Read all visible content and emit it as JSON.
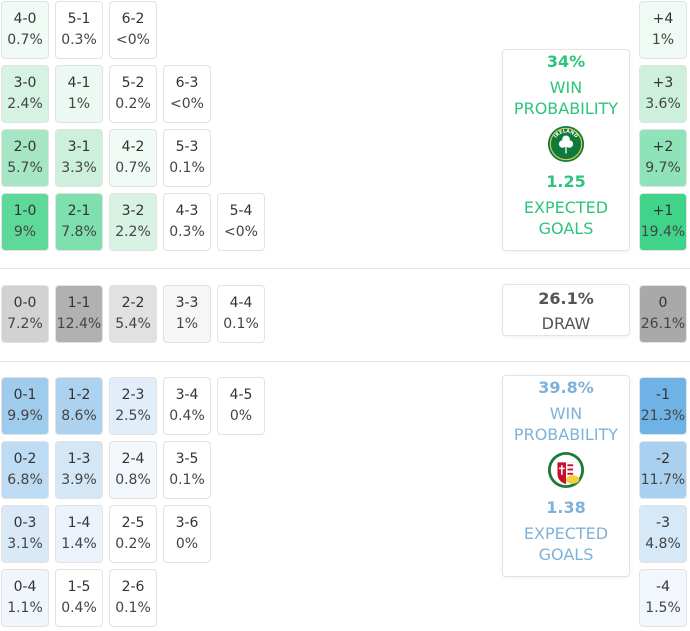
{
  "home_scores": [
    {
      "score": "4-0",
      "pct": "0.7%",
      "bg": "#f0fbf5",
      "col": 0,
      "row": 0
    },
    {
      "score": "5-1",
      "pct": "0.3%",
      "bg": "#ffffff",
      "col": 1,
      "row": 0
    },
    {
      "score": "6-2",
      "pct": "<0%",
      "bg": "#ffffff",
      "col": 2,
      "row": 0
    },
    {
      "score": "3-0",
      "pct": "2.4%",
      "bg": "#d5f2e2",
      "col": 0,
      "row": 1
    },
    {
      "score": "4-1",
      "pct": "1%",
      "bg": "#ecf9f2",
      "col": 1,
      "row": 1
    },
    {
      "score": "5-2",
      "pct": "0.2%",
      "bg": "#ffffff",
      "col": 2,
      "row": 1
    },
    {
      "score": "6-3",
      "pct": "<0%",
      "bg": "#ffffff",
      "col": 3,
      "row": 1
    },
    {
      "score": "2-0",
      "pct": "5.7%",
      "bg": "#a6e6c4",
      "col": 0,
      "row": 2
    },
    {
      "score": "3-1",
      "pct": "3.3%",
      "bg": "#ccf0dc",
      "col": 1,
      "row": 2
    },
    {
      "score": "4-2",
      "pct": "0.7%",
      "bg": "#f0fbf5",
      "col": 2,
      "row": 2
    },
    {
      "score": "5-3",
      "pct": "0.1%",
      "bg": "#ffffff",
      "col": 3,
      "row": 2
    },
    {
      "score": "1-0",
      "pct": "9%",
      "bg": "#5fd99a",
      "col": 0,
      "row": 3
    },
    {
      "score": "2-1",
      "pct": "7.8%",
      "bg": "#7fdfae",
      "col": 1,
      "row": 3
    },
    {
      "score": "3-2",
      "pct": "2.2%",
      "bg": "#d8f3e4",
      "col": 2,
      "row": 3
    },
    {
      "score": "4-3",
      "pct": "0.3%",
      "bg": "#ffffff",
      "col": 3,
      "row": 3
    },
    {
      "score": "5-4",
      "pct": "<0%",
      "bg": "#ffffff",
      "col": 4,
      "row": 3
    }
  ],
  "draw_scores": [
    {
      "score": "0-0",
      "pct": "7.2%",
      "bg": "#d2d2d2",
      "col": 0
    },
    {
      "score": "1-1",
      "pct": "12.4%",
      "bg": "#b1b1b1",
      "col": 1
    },
    {
      "score": "2-2",
      "pct": "5.4%",
      "bg": "#e1e1e1",
      "col": 2
    },
    {
      "score": "3-3",
      "pct": "1%",
      "bg": "#f6f6f6",
      "col": 3
    },
    {
      "score": "4-4",
      "pct": "0.1%",
      "bg": "#ffffff",
      "col": 4
    }
  ],
  "away_scores": [
    {
      "score": "0-1",
      "pct": "9.9%",
      "bg": "#9fcbec",
      "col": 0,
      "row": 0
    },
    {
      "score": "1-2",
      "pct": "8.6%",
      "bg": "#add2ef",
      "col": 1,
      "row": 0
    },
    {
      "score": "2-3",
      "pct": "2.5%",
      "bg": "#e1eefa",
      "col": 2,
      "row": 0
    },
    {
      "score": "3-4",
      "pct": "0.4%",
      "bg": "#ffffff",
      "col": 3,
      "row": 0
    },
    {
      "score": "4-5",
      "pct": "0%",
      "bg": "#ffffff",
      "col": 4,
      "row": 0
    },
    {
      "score": "0-2",
      "pct": "6.8%",
      "bg": "#bddbf2",
      "col": 0,
      "row": 1
    },
    {
      "score": "1-3",
      "pct": "3.9%",
      "bg": "#d3e7f7",
      "col": 1,
      "row": 1
    },
    {
      "score": "2-4",
      "pct": "0.8%",
      "bg": "#f3f8fd",
      "col": 2,
      "row": 1
    },
    {
      "score": "3-5",
      "pct": "0.1%",
      "bg": "#ffffff",
      "col": 3,
      "row": 1
    },
    {
      "score": "0-3",
      "pct": "3.1%",
      "bg": "#dae9f8",
      "col": 0,
      "row": 2
    },
    {
      "score": "1-4",
      "pct": "1.4%",
      "bg": "#eaf3fb",
      "col": 1,
      "row": 2
    },
    {
      "score": "2-5",
      "pct": "0.2%",
      "bg": "#ffffff",
      "col": 2,
      "row": 2
    },
    {
      "score": "3-6",
      "pct": "0%",
      "bg": "#ffffff",
      "col": 3,
      "row": 2
    },
    {
      "score": "0-4",
      "pct": "1.1%",
      "bg": "#f0f6fc",
      "col": 0,
      "row": 3
    },
    {
      "score": "1-5",
      "pct": "0.4%",
      "bg": "#ffffff",
      "col": 1,
      "row": 3
    },
    {
      "score": "2-6",
      "pct": "0.1%",
      "bg": "#ffffff",
      "col": 2,
      "row": 3
    }
  ],
  "home_margins": [
    {
      "label": "+4",
      "pct": "1%",
      "bg": "#eefaf3"
    },
    {
      "label": "+3",
      "pct": "3.6%",
      "bg": "#cdf0dd"
    },
    {
      "label": "+2",
      "pct": "9.7%",
      "bg": "#8fe3b8"
    },
    {
      "label": "+1",
      "pct": "19.4%",
      "bg": "#3fd48a"
    }
  ],
  "draw_margin": {
    "label": "0",
    "pct": "26.1%",
    "bg": "#a9a9a9"
  },
  "away_margins": [
    {
      "label": "-1",
      "pct": "21.3%",
      "bg": "#6fb3e6"
    },
    {
      "label": "-2",
      "pct": "11.7%",
      "bg": "#a9d0ef"
    },
    {
      "label": "-3",
      "pct": "4.8%",
      "bg": "#d6e9f8"
    },
    {
      "label": "-4",
      "pct": "1.5%",
      "bg": "#f1f7fd"
    }
  ],
  "home_card": {
    "win_pct": "34%",
    "win_label_1": "WIN",
    "win_label_2": "PROBABILITY",
    "xg": "1.25",
    "xg_label_1": "EXPECTED",
    "xg_label_2": "GOALS",
    "color": "#2dc47c",
    "crest_icon": "ireland-crest-icon",
    "crest_text": "IRELAND"
  },
  "draw_card": {
    "pct": "26.1%",
    "label": "DRAW",
    "color": "#555555"
  },
  "away_card": {
    "win_pct": "39.8%",
    "win_label_1": "WIN",
    "win_label_2": "PROBABILITY",
    "xg": "1.38",
    "xg_label_1": "EXPECTED",
    "xg_label_2": "GOALS",
    "color": "#7fb2d9",
    "crest_icon": "hungary-crest-icon"
  }
}
